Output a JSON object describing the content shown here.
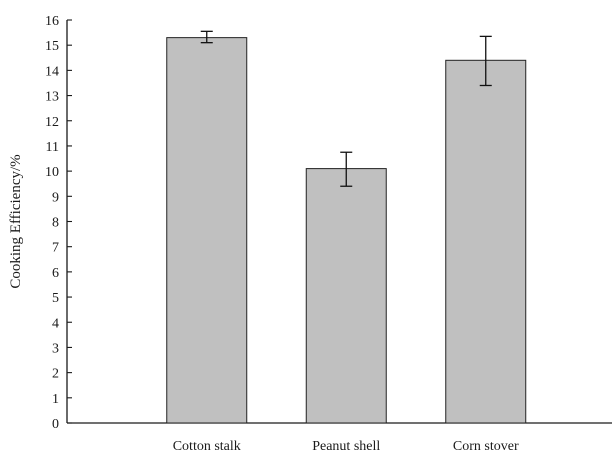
{
  "chart_data": {
    "type": "bar",
    "categories": [
      "Cotton stalk",
      "Peanut shell",
      "Corn stover"
    ],
    "values": [
      15.3,
      10.1,
      14.4
    ],
    "error": [
      [
        15.1,
        15.55
      ],
      [
        9.4,
        10.75
      ],
      [
        13.4,
        15.35
      ]
    ],
    "xlabel": "",
    "ylabel": "Cooking Efficiency/%",
    "ylim": [
      0,
      16
    ],
    "yticks": [
      0,
      1,
      2,
      3,
      4,
      5,
      6,
      7,
      8,
      9,
      10,
      11,
      12,
      13,
      14,
      15,
      16
    ],
    "grid": false,
    "bar_color": "#c0c0c0"
  }
}
